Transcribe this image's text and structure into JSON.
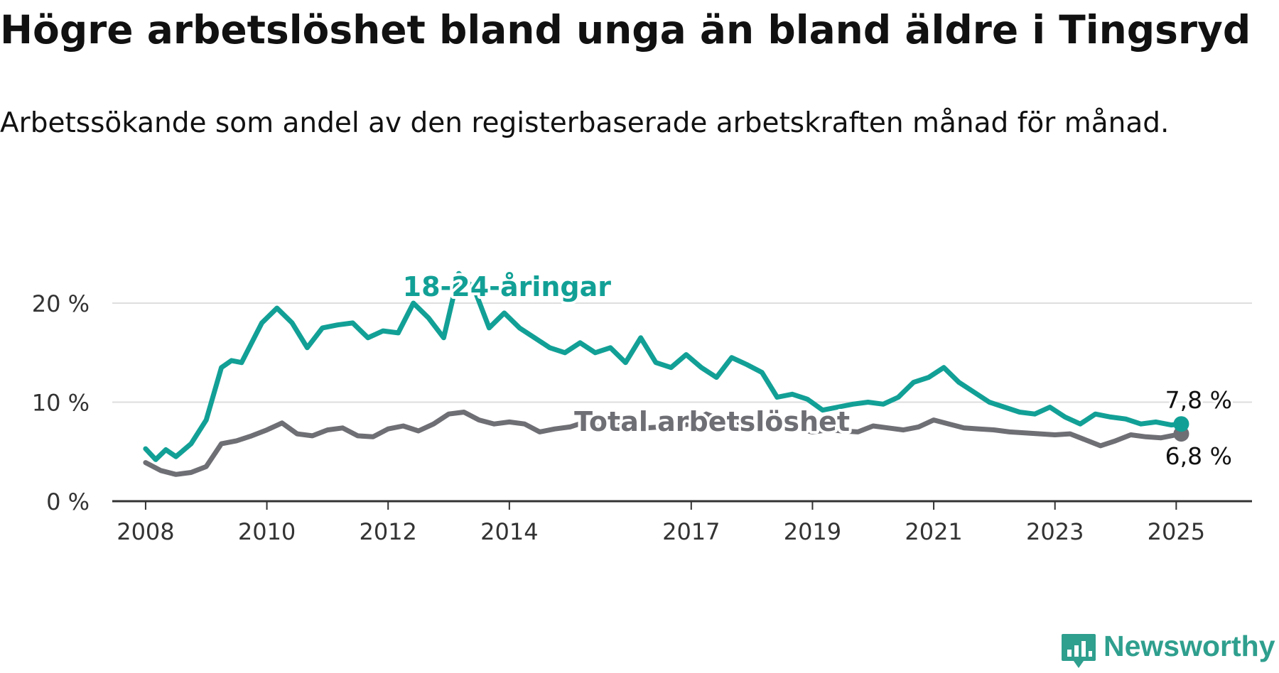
{
  "title": "Högre arbetslöshet bland unga än bland äldre i Tingsryd",
  "subtitle": "Arbetssökande som andel av den registerbaserade arbetskraften månad för månad.",
  "brand": {
    "name": "Newsworthy",
    "icon": "bar-chart-speech-bubble-icon",
    "color": "#2f9f8e"
  },
  "chart_data": {
    "type": "line",
    "x_ticks": [
      "2008",
      "2010",
      "2012",
      "2014",
      "2017",
      "2019",
      "2021",
      "2023",
      "2025"
    ],
    "y_ticks": [
      "0 %",
      "10 %",
      "20 %"
    ],
    "ylim": [
      0,
      25
    ],
    "grid": true,
    "series": [
      {
        "name": "18-24-åringar",
        "color": "#12a096",
        "end_label": "7,8 %",
        "x": [
          "2008-01",
          "2008-03",
          "2008-05",
          "2008-07",
          "2008-10",
          "2009-01",
          "2009-04",
          "2009-06",
          "2009-08",
          "2009-10",
          "2009-12",
          "2010-03",
          "2010-06",
          "2010-09",
          "2010-12",
          "2011-03",
          "2011-06",
          "2011-09",
          "2011-12",
          "2012-03",
          "2012-06",
          "2012-09",
          "2012-12",
          "2013-03",
          "2013-06",
          "2013-09",
          "2013-12",
          "2014-03",
          "2014-06",
          "2014-09",
          "2014-12",
          "2015-03",
          "2015-06",
          "2015-09",
          "2015-12",
          "2016-03",
          "2016-06",
          "2016-09",
          "2016-12",
          "2017-03",
          "2017-06",
          "2017-09",
          "2017-12",
          "2018-03",
          "2018-06",
          "2018-09",
          "2018-12",
          "2019-03",
          "2019-06",
          "2019-09",
          "2019-12",
          "2020-03",
          "2020-06",
          "2020-09",
          "2020-12",
          "2021-03",
          "2021-06",
          "2021-09",
          "2021-12",
          "2022-03",
          "2022-06",
          "2022-09",
          "2022-12",
          "2023-03",
          "2023-06",
          "2023-09",
          "2023-12",
          "2024-03",
          "2024-06",
          "2024-09",
          "2024-12",
          "2025-02"
        ],
        "y": [
          5.3,
          4.2,
          5.2,
          4.5,
          5.8,
          8.2,
          13.5,
          14.2,
          14.0,
          16.0,
          18.0,
          19.5,
          18.0,
          15.5,
          17.5,
          17.8,
          18.0,
          16.5,
          17.2,
          17.0,
          20.0,
          18.5,
          16.5,
          23.0,
          21.5,
          17.5,
          19.0,
          17.5,
          16.5,
          15.5,
          15.0,
          16.0,
          15.0,
          15.5,
          14.0,
          16.5,
          14.0,
          13.5,
          14.8,
          13.5,
          12.5,
          14.5,
          13.8,
          13.0,
          10.5,
          10.8,
          10.3,
          9.2,
          9.5,
          9.8,
          10.0,
          9.8,
          10.5,
          12.0,
          12.5,
          13.5,
          12.0,
          11.0,
          10.0,
          9.5,
          9.0,
          8.8,
          9.5,
          8.5,
          7.8,
          8.8,
          8.5,
          8.3,
          7.8,
          8.0,
          7.7,
          7.8
        ]
      },
      {
        "name": "Total arbetslöshet",
        "color": "#6e6e75",
        "end_label": "6,8 %",
        "x": [
          "2008-01",
          "2008-04",
          "2008-07",
          "2008-10",
          "2009-01",
          "2009-04",
          "2009-07",
          "2009-10",
          "2010-01",
          "2010-04",
          "2010-07",
          "2010-10",
          "2011-01",
          "2011-04",
          "2011-07",
          "2011-10",
          "2012-01",
          "2012-04",
          "2012-07",
          "2012-10",
          "2013-01",
          "2013-04",
          "2013-07",
          "2013-10",
          "2014-01",
          "2014-04",
          "2014-07",
          "2014-10",
          "2015-01",
          "2015-04",
          "2015-07",
          "2015-10",
          "2016-01",
          "2016-04",
          "2016-07",
          "2016-10",
          "2017-01",
          "2017-04",
          "2017-07",
          "2017-10",
          "2018-01",
          "2018-04",
          "2018-07",
          "2018-10",
          "2019-01",
          "2019-04",
          "2019-07",
          "2019-10",
          "2020-01",
          "2020-04",
          "2020-07",
          "2020-10",
          "2021-01",
          "2021-04",
          "2021-07",
          "2021-10",
          "2022-01",
          "2022-04",
          "2022-07",
          "2022-10",
          "2023-01",
          "2023-04",
          "2023-07",
          "2023-10",
          "2024-01",
          "2024-04",
          "2024-07",
          "2024-10",
          "2025-02"
        ],
        "y": [
          3.9,
          3.1,
          2.7,
          2.9,
          3.5,
          5.8,
          6.1,
          6.6,
          7.2,
          7.9,
          6.8,
          6.6,
          7.2,
          7.4,
          6.6,
          6.5,
          7.3,
          7.6,
          7.1,
          7.8,
          8.8,
          9.0,
          8.2,
          7.8,
          8.0,
          7.8,
          7.0,
          7.3,
          7.5,
          8.0,
          7.5,
          7.6,
          7.8,
          7.4,
          7.5,
          7.6,
          7.8,
          8.8,
          8.2,
          7.9,
          7.7,
          7.4,
          7.5,
          7.3,
          7.0,
          7.2,
          7.1,
          7.0,
          7.6,
          7.4,
          7.2,
          7.5,
          8.2,
          7.8,
          7.4,
          7.3,
          7.2,
          7.0,
          6.9,
          6.8,
          6.7,
          6.8,
          6.2,
          5.6,
          6.1,
          6.7,
          6.5,
          6.4,
          6.8
        ]
      }
    ]
  }
}
